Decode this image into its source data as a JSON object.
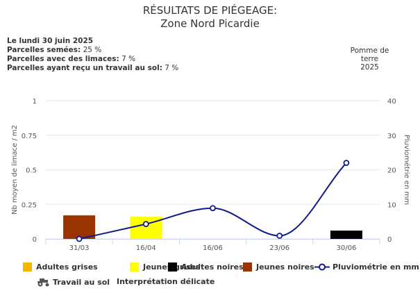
{
  "header": {
    "title_line1": "RÉSULTATS DE PIÉGEAGE:",
    "title_line2": "Zone Nord Picardie"
  },
  "info": {
    "date": "Le lundi 30 juin 2025",
    "lines": [
      {
        "label": "Parcelles semées:",
        "value": " 25 %"
      },
      {
        "label": "Parcelles avec des limaces:",
        "value": " 7 %"
      },
      {
        "label": "Parcelles ayant reçu un travail au sol:",
        "value": " 7 %"
      }
    ]
  },
  "crop": {
    "line1": "Pomme de",
    "line2": "terre",
    "line3": "2025"
  },
  "chart_data": {
    "type": "bar",
    "categories": [
      "31/03",
      "16/04",
      "16/06",
      "23/06",
      "30/06"
    ],
    "ylabel": "Nb moyen de limace / m2",
    "y2label": "Pluviométrie en mm",
    "ylim": [
      0,
      1
    ],
    "y2lim": [
      0,
      40
    ],
    "yticks": [
      "0",
      "0.25",
      "0.5",
      "0.75",
      "1"
    ],
    "y2ticks": [
      "0",
      "10",
      "20",
      "30",
      "40"
    ],
    "grid": true,
    "bars": [
      {
        "category": "31/03",
        "series": "Jeunes noires",
        "value": 0.17
      },
      {
        "category": "16/04",
        "series": "Jeunes grises",
        "value": 0.16
      },
      {
        "category": "30/06",
        "series": "Adultes noires",
        "value": 0.06
      }
    ],
    "line_series": {
      "name": "Pluviométrie en mm",
      "values": [
        0,
        4.3,
        8.9,
        0.9,
        22
      ]
    },
    "series": [
      {
        "name": "Adultes grises",
        "color": "#f7b500"
      },
      {
        "name": "Jeunes grises",
        "color": "#ffff00"
      },
      {
        "name": "Adultes noires",
        "color": "#000000"
      },
      {
        "name": "Jeunes noires",
        "color": "#993300"
      }
    ],
    "line_color": "#0e1a8a",
    "legend": "bottom"
  },
  "legend_extra": {
    "travail": "Travail au sol",
    "interpretation": "Interprétation délicate"
  }
}
